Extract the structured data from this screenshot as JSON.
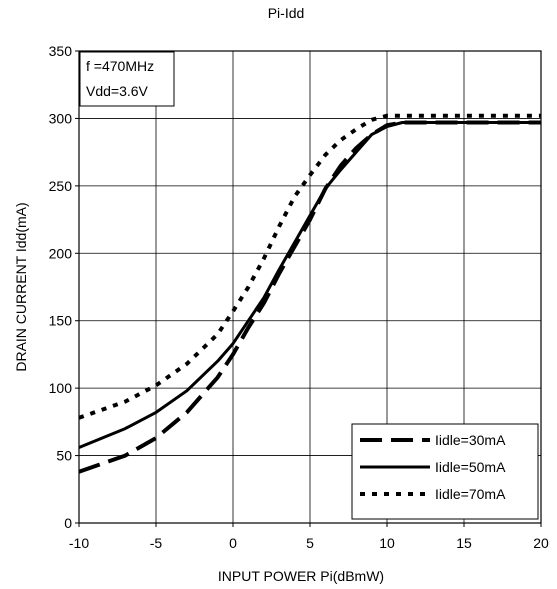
{
  "chart_data": {
    "type": "line",
    "title": "Pi-Idd",
    "xlabel": "INPUT POWER Pi(dBmW)",
    "ylabel": "DRAIN CURRENT Idd(mA)",
    "xlim": [
      -10,
      20
    ],
    "ylim": [
      0,
      350
    ],
    "xticks": [
      -10,
      -5,
      0,
      5,
      10,
      15,
      20
    ],
    "yticks": [
      0,
      50,
      100,
      150,
      200,
      250,
      300,
      350
    ],
    "grid": true,
    "annotation": {
      "lines": [
        "f =470MHz",
        "Vdd=3.6V"
      ],
      "placement": "top-left"
    },
    "legend": {
      "placement": "bottom-right"
    },
    "colors": {
      "series": "#000000",
      "grid": "#000000",
      "background": "#ffffff"
    },
    "series": [
      {
        "name": "Iidle=30mA",
        "style": "dashed-long",
        "points": [
          [
            -10,
            38
          ],
          [
            -7,
            50
          ],
          [
            -5,
            63
          ],
          [
            -3,
            82
          ],
          [
            -1,
            108
          ],
          [
            0,
            125
          ],
          [
            1,
            145
          ],
          [
            2,
            163
          ],
          [
            3,
            185
          ],
          [
            4,
            205
          ],
          [
            5,
            225
          ],
          [
            6,
            248
          ],
          [
            7,
            265
          ],
          [
            8,
            278
          ],
          [
            9,
            288
          ],
          [
            10,
            295
          ],
          [
            11,
            297
          ],
          [
            15,
            297
          ],
          [
            20,
            297
          ]
        ]
      },
      {
        "name": "Iidle=50mA",
        "style": "solid",
        "points": [
          [
            -10,
            56
          ],
          [
            -7,
            70
          ],
          [
            -5,
            82
          ],
          [
            -3,
            98
          ],
          [
            -1,
            120
          ],
          [
            0,
            133
          ],
          [
            1,
            150
          ],
          [
            2,
            167
          ],
          [
            3,
            188
          ],
          [
            4,
            208
          ],
          [
            5,
            228
          ],
          [
            6,
            248
          ],
          [
            7,
            262
          ],
          [
            8,
            275
          ],
          [
            9,
            288
          ],
          [
            10,
            294
          ],
          [
            11,
            297
          ],
          [
            15,
            297
          ],
          [
            20,
            297
          ]
        ]
      },
      {
        "name": "Iidle=70mA",
        "style": "dotted",
        "points": [
          [
            -10,
            78
          ],
          [
            -7,
            90
          ],
          [
            -5,
            102
          ],
          [
            -3,
            118
          ],
          [
            -1,
            140
          ],
          [
            0,
            157
          ],
          [
            1,
            175
          ],
          [
            2,
            196
          ],
          [
            3,
            220
          ],
          [
            4,
            242
          ],
          [
            5,
            258
          ],
          [
            6,
            273
          ],
          [
            7,
            284
          ],
          [
            8,
            292
          ],
          [
            9,
            299
          ],
          [
            10,
            302
          ],
          [
            15,
            302
          ],
          [
            20,
            302
          ]
        ]
      }
    ]
  }
}
